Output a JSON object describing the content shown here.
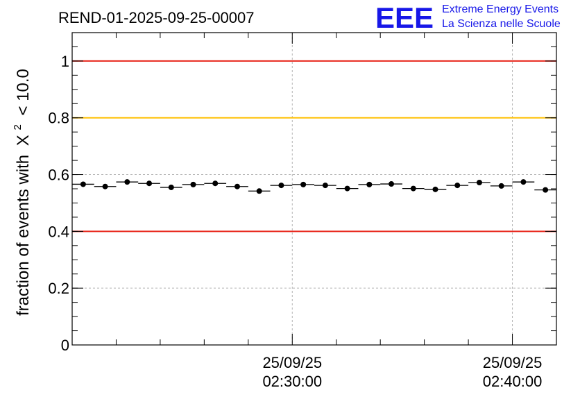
{
  "chart_data": {
    "type": "scatter",
    "title": "REND-01-2025-09-25-00007",
    "ylabel": "fraction of events with",
    "ylabel_symbol": "X",
    "ylabel_power": "2",
    "ylabel_suffix": "< 10.0",
    "ylim": [
      0,
      1.1
    ],
    "yticks": [
      {
        "value": 0,
        "label": "0"
      },
      {
        "value": 0.2,
        "label": "0.2"
      },
      {
        "value": 0.4,
        "label": "0.4"
      },
      {
        "value": 0.6,
        "label": "0.6"
      },
      {
        "value": 0.8,
        "label": "0.8"
      },
      {
        "value": 1.0,
        "label": "1"
      }
    ],
    "xlim_minutes": [
      0,
      22
    ],
    "xticks": [
      {
        "minute": 10,
        "date": "25/09/25",
        "time": "02:30:00"
      },
      {
        "minute": 20,
        "date": "25/09/25",
        "time": "02:40:00"
      }
    ],
    "x_minor_step_minutes": 2,
    "bin_width_minutes": 1,
    "bin_start_minutes": 0,
    "values": [
      0.566,
      0.558,
      0.574,
      0.569,
      0.555,
      0.565,
      0.569,
      0.558,
      0.542,
      0.562,
      0.565,
      0.562,
      0.551,
      0.565,
      0.567,
      0.551,
      0.548,
      0.562,
      0.572,
      0.56,
      0.574,
      0.546
    ],
    "reference_lines": [
      {
        "value": 1.0,
        "color": "#e8261b"
      },
      {
        "value": 0.8,
        "color": "#ffc107"
      },
      {
        "value": 0.4,
        "color": "#e8261b"
      }
    ],
    "grid": true,
    "marker_color": "#000000"
  },
  "logo": {
    "mark": "EEE",
    "line1": "Extreme Energy Events",
    "line2": "La Scienza nelle Scuole",
    "color": "#1717e8"
  }
}
